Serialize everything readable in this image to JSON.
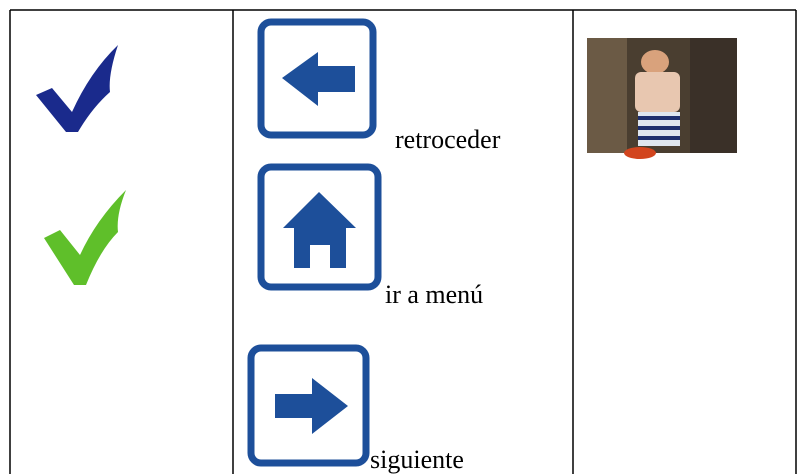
{
  "actions": [
    "retroceder",
    "ir a menú",
    "siguiente"
  ]
}
